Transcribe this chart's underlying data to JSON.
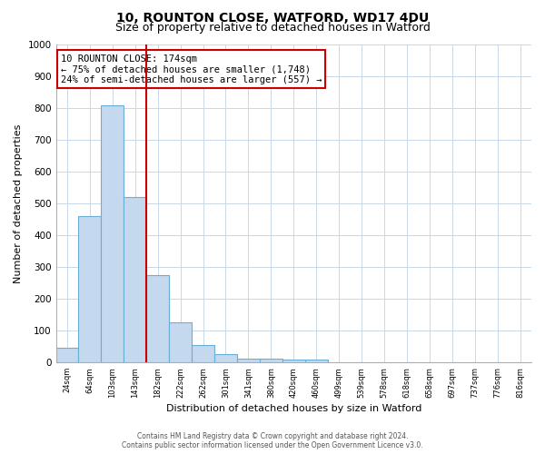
{
  "title_line1": "10, ROUNTON CLOSE, WATFORD, WD17 4DU",
  "title_line2": "Size of property relative to detached houses in Watford",
  "xlabel": "Distribution of detached houses by size in Watford",
  "ylabel": "Number of detached properties",
  "bar_labels": [
    "24sqm",
    "64sqm",
    "103sqm",
    "143sqm",
    "182sqm",
    "222sqm",
    "262sqm",
    "301sqm",
    "341sqm",
    "380sqm",
    "420sqm",
    "460sqm",
    "499sqm",
    "539sqm",
    "578sqm",
    "618sqm",
    "658sqm",
    "697sqm",
    "737sqm",
    "776sqm",
    "816sqm"
  ],
  "bar_values": [
    45,
    460,
    810,
    520,
    275,
    125,
    55,
    25,
    12,
    12,
    8,
    8,
    0,
    0,
    0,
    0,
    0,
    0,
    0,
    0,
    0
  ],
  "bar_color": "#c5d9ee",
  "bar_edge_color": "#6aaed6",
  "red_line_x": 4,
  "red_line_color": "#cc0000",
  "ylim": [
    0,
    1000
  ],
  "yticks": [
    0,
    100,
    200,
    300,
    400,
    500,
    600,
    700,
    800,
    900,
    1000
  ],
  "annotation_text": "10 ROUNTON CLOSE: 174sqm\n← 75% of detached houses are smaller (1,748)\n24% of semi-detached houses are larger (557) →",
  "annotation_box_color": "#ffffff",
  "annotation_box_edge_color": "#cc0000",
  "footer_line1": "Contains HM Land Registry data © Crown copyright and database right 2024.",
  "footer_line2": "Contains public sector information licensed under the Open Government Licence v3.0.",
  "background_color": "#ffffff",
  "grid_color": "#c8d8e8",
  "title1_fontsize": 10,
  "title2_fontsize": 9
}
